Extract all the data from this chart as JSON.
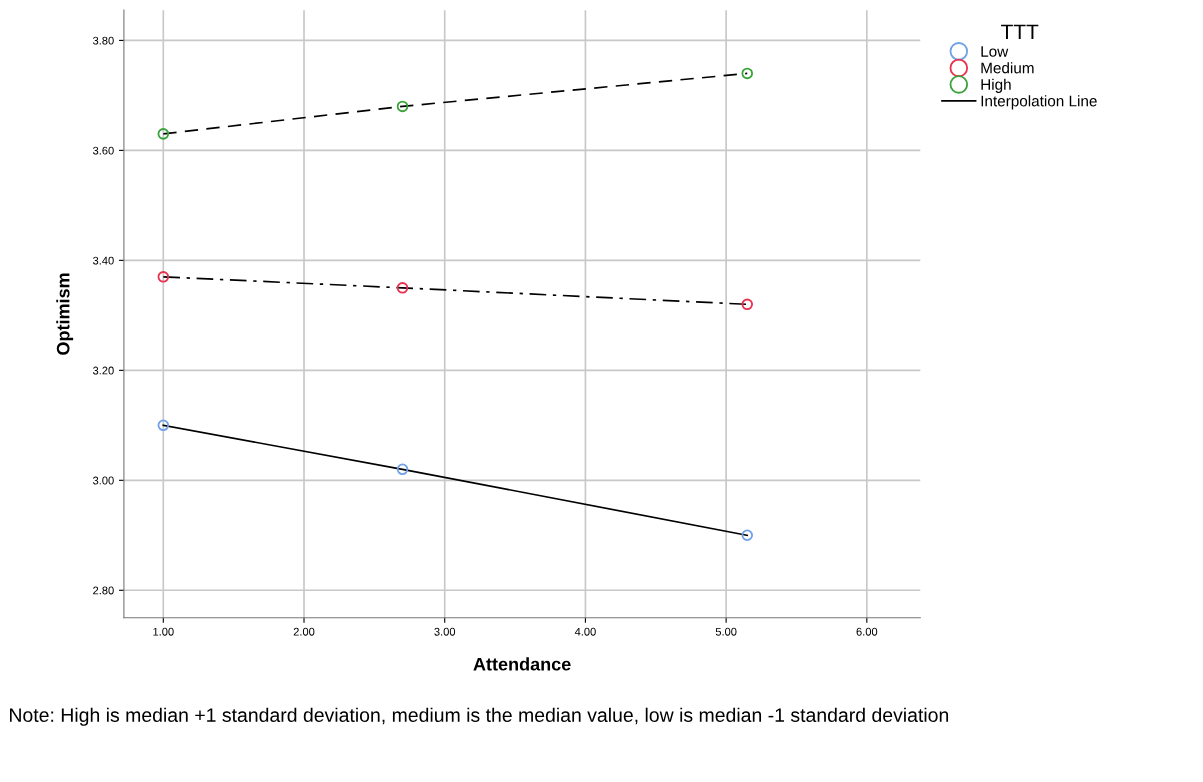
{
  "chart_data": {
    "type": "line",
    "xlabel": "Attendance",
    "ylabel": "Optimism",
    "legend_title": "TTT",
    "x": [
      1.0,
      2.7,
      5.15
    ],
    "series": [
      {
        "name": "Low",
        "color": "#6fa0e8",
        "values": [
          3.1,
          3.02,
          2.9
        ],
        "line_style": "solid"
      },
      {
        "name": "Medium",
        "color": "#e8324f",
        "values": [
          3.37,
          3.35,
          3.32
        ],
        "line_style": "dashdot"
      },
      {
        "name": "High",
        "color": "#3aa23a",
        "values": [
          3.63,
          3.68,
          3.74
        ],
        "line_style": "dashed"
      }
    ],
    "marker": "circle",
    "xlim": [
      0.72,
      6.38
    ],
    "ylim": [
      2.75,
      3.855
    ],
    "xticks": [
      {
        "value": 1,
        "label": "1.00"
      },
      {
        "value": 2,
        "label": "2.00"
      },
      {
        "value": 3,
        "label": "3.00"
      },
      {
        "value": 4,
        "label": "4.00"
      },
      {
        "value": 5,
        "label": "5.00"
      },
      {
        "value": 6,
        "label": "6.00"
      }
    ],
    "yticks": [
      {
        "value": 2.8,
        "label": "2.80"
      },
      {
        "value": 3.0,
        "label": "3.00"
      },
      {
        "value": 3.2,
        "label": "3.20"
      },
      {
        "value": 3.4,
        "label": "3.40"
      },
      {
        "value": 3.6,
        "label": "3.60"
      },
      {
        "value": 3.8,
        "label": "3.80"
      }
    ],
    "grid": true,
    "legend": "top right",
    "annotations": [
      "Interpolation Line",
      "Note: High is median +1 standard deviation, medium is the median value, low is median -1 standard deviation"
    ]
  }
}
